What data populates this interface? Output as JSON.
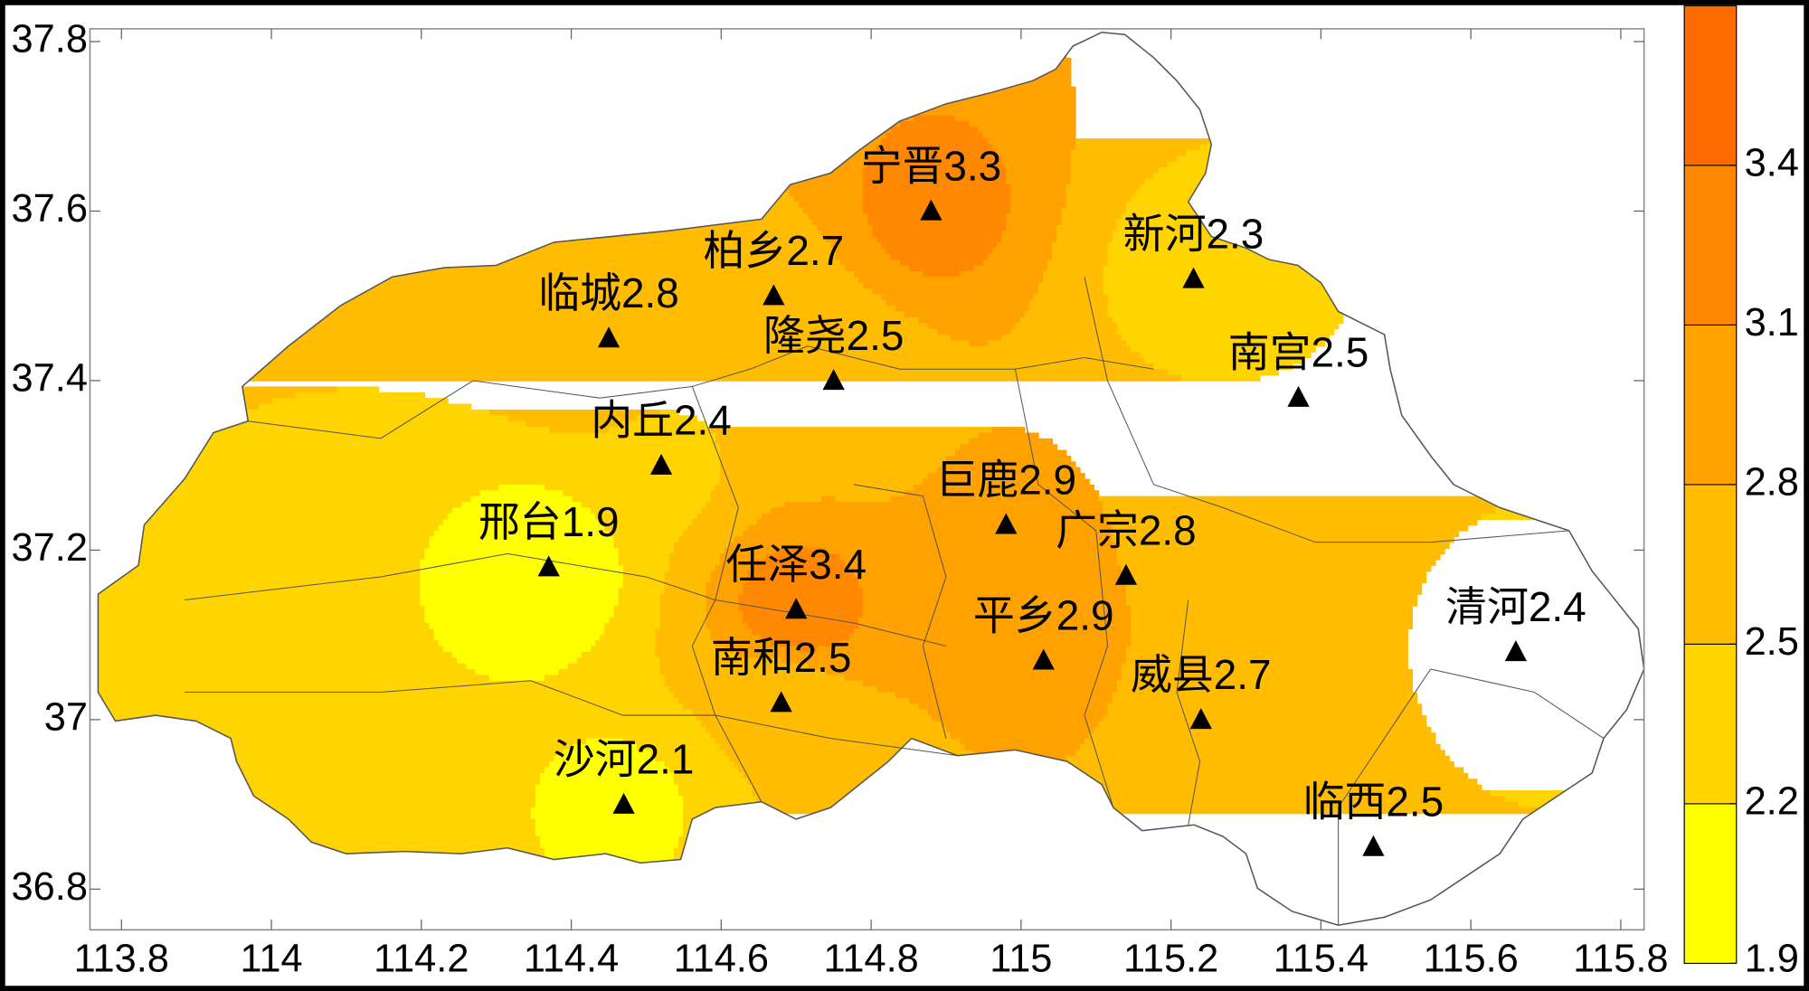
{
  "chart_data": {
    "type": "contour-map",
    "xlim": [
      113.758,
      115.831
    ],
    "ylim": [
      36.752,
      37.815
    ],
    "xticks": [
      113.8,
      114,
      114.2,
      114.4,
      114.6,
      114.8,
      115,
      115.2,
      115.4,
      115.6,
      115.8
    ],
    "yticks": [
      36.8,
      37,
      37.2,
      37.4,
      37.6,
      37.8
    ],
    "stations": [
      {
        "name": "宁晋",
        "lon": 114.88,
        "lat": 37.6,
        "value": 3.3
      },
      {
        "name": "柏乡",
        "lon": 114.67,
        "lat": 37.5,
        "value": 2.7
      },
      {
        "name": "临城",
        "lon": 114.45,
        "lat": 37.45,
        "value": 2.8
      },
      {
        "name": "隆尧",
        "lon": 114.75,
        "lat": 37.4,
        "value": 2.5
      },
      {
        "name": "新河",
        "lon": 115.23,
        "lat": 37.52,
        "value": 2.3
      },
      {
        "name": "南宫",
        "lon": 115.37,
        "lat": 37.38,
        "value": 2.5
      },
      {
        "name": "内丘",
        "lon": 114.52,
        "lat": 37.3,
        "value": 2.4
      },
      {
        "name": "巨鹿",
        "lon": 114.98,
        "lat": 37.23,
        "value": 2.9
      },
      {
        "name": "邢台",
        "lon": 114.37,
        "lat": 37.18,
        "value": 1.9
      },
      {
        "name": "广宗",
        "lon": 115.14,
        "lat": 37.17,
        "value": 2.8
      },
      {
        "name": "任泽",
        "lon": 114.7,
        "lat": 37.13,
        "value": 3.4
      },
      {
        "name": "平乡",
        "lon": 115.03,
        "lat": 37.07,
        "value": 2.9
      },
      {
        "name": "清河",
        "lon": 115.66,
        "lat": 37.08,
        "value": 2.4
      },
      {
        "name": "南和",
        "lon": 114.68,
        "lat": 37.02,
        "value": 2.5
      },
      {
        "name": "威县",
        "lon": 115.24,
        "lat": 37.0,
        "value": 2.7
      },
      {
        "name": "沙河",
        "lon": 114.47,
        "lat": 36.9,
        "value": 2.1
      },
      {
        "name": "临西",
        "lon": 115.47,
        "lat": 36.85,
        "value": 2.5
      }
    ],
    "colorbar": {
      "clim": [
        1.9,
        3.7
      ],
      "ticks": [
        1.9,
        2.2,
        2.5,
        2.8,
        3.1,
        3.4
      ],
      "colors": [
        "#ffff00",
        "#ffd400",
        "#ffbc00",
        "#ffa200",
        "#ff8800",
        "#ff6a00"
      ]
    }
  }
}
